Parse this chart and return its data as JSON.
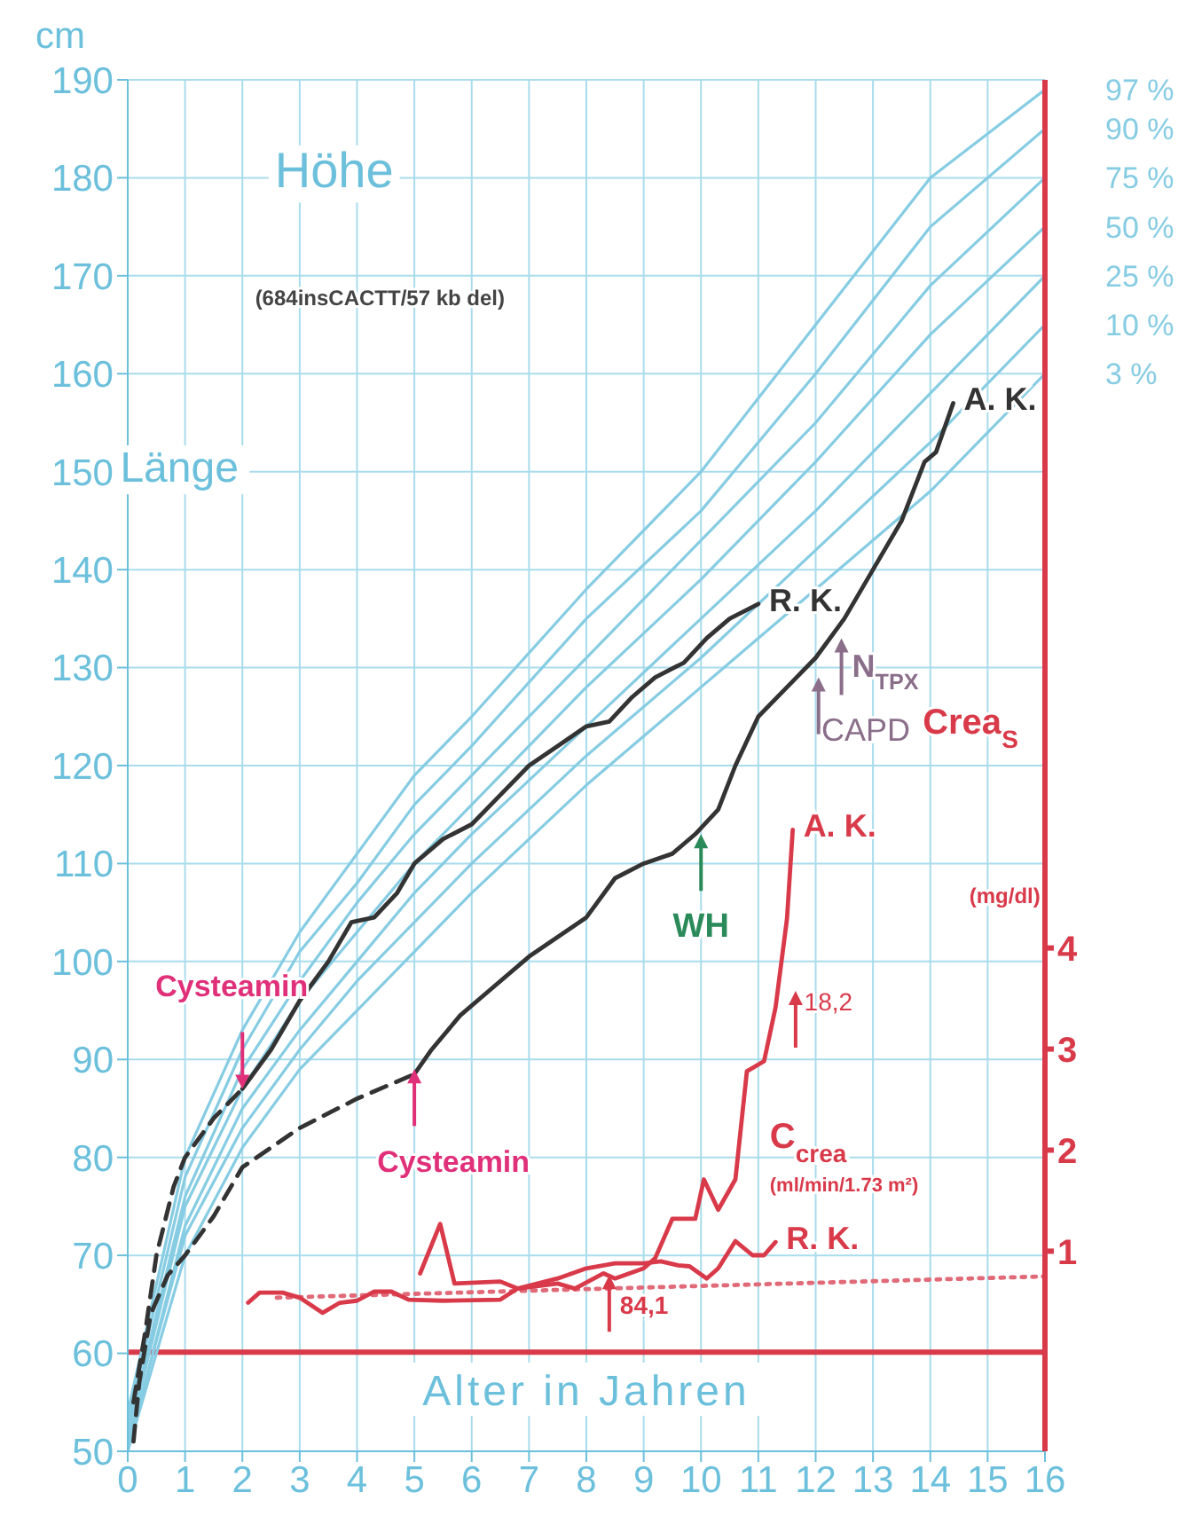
{
  "chart_data": {
    "type": "line",
    "xlabel": "Alter in Jahren",
    "ylabel": "cm",
    "y2label": "Crea$_{S}$",
    "xlim": [
      0,
      16
    ],
    "xticks": [
      0,
      1,
      2,
      3,
      4,
      5,
      6,
      7,
      8,
      9,
      10,
      11,
      12,
      13,
      14,
      15,
      16
    ],
    "ylim": [
      50,
      190
    ],
    "yticks": [
      50,
      60,
      70,
      80,
      90,
      100,
      110,
      120,
      130,
      140,
      150,
      160,
      170,
      180,
      190
    ],
    "y2lim": [
      -0.98,
      12.59
    ],
    "y2ticks": [
      1,
      2,
      3,
      4
    ],
    "grid": true,
    "legend": false,
    "marker": "none",
    "series": [
      {
        "name": "97 %",
        "color": "#86cce3",
        "line_style": "solid",
        "x": [
          0,
          1,
          2,
          3,
          4,
          5,
          6,
          8,
          10,
          12,
          14,
          16
        ],
        "values": [
          54,
          80,
          93,
          103,
          111,
          119,
          125,
          138,
          150,
          165,
          180,
          189
        ]
      },
      {
        "name": "90 %",
        "color": "#86cce3",
        "line_style": "solid",
        "x": [
          0,
          1,
          2,
          3,
          4,
          5,
          6,
          8,
          10,
          12,
          14,
          16
        ],
        "values": [
          53,
          78,
          91,
          101,
          108,
          116,
          122,
          135,
          146,
          160,
          175,
          185
        ]
      },
      {
        "name": "75 %",
        "color": "#86cce3",
        "line_style": "solid",
        "x": [
          0,
          1,
          2,
          3,
          4,
          5,
          6,
          8,
          10,
          12,
          14,
          16
        ],
        "values": [
          52,
          76,
          89,
          98,
          106,
          113,
          119,
          131,
          143,
          155,
          169,
          180
        ]
      },
      {
        "name": "50 %",
        "color": "#86cce3",
        "line_style": "solid",
        "x": [
          0,
          1,
          2,
          3,
          4,
          5,
          6,
          8,
          10,
          12,
          14,
          16
        ],
        "values": [
          51,
          75,
          87,
          96,
          103,
          110,
          116,
          128,
          139,
          151,
          164,
          175
        ]
      },
      {
        "name": "25 %",
        "color": "#86cce3",
        "line_style": "solid",
        "x": [
          0,
          1,
          2,
          3,
          4,
          5,
          6,
          8,
          10,
          12,
          14,
          16
        ],
        "values": [
          50,
          73,
          85,
          93,
          100,
          107,
          113,
          124,
          135,
          146,
          158,
          170
        ]
      },
      {
        "name": "10 %",
        "color": "#86cce3",
        "line_style": "solid",
        "x": [
          0,
          1,
          2,
          3,
          4,
          5,
          6,
          8,
          10,
          12,
          14,
          16
        ],
        "values": [
          50.5,
          72,
          83,
          91,
          98,
          104,
          110,
          121,
          131,
          142,
          153,
          165
        ]
      },
      {
        "name": "3 %",
        "color": "#86cce3",
        "line_style": "solid",
        "x": [
          0,
          1,
          2,
          3,
          4,
          5,
          6,
          8,
          10,
          12,
          14,
          16
        ],
        "values": [
          50,
          70,
          81,
          89,
          95,
          101,
          107,
          118,
          128,
          138,
          148,
          160
        ]
      },
      {
        "color": "#333333",
        "line_style": "dashed",
        "x": [
          0.1,
          0.3,
          0.5,
          0.8,
          1.0,
          1.5,
          2.0
        ],
        "values": [
          55,
          62,
          70,
          77,
          80,
          84,
          87
        ]
      },
      {
        "name": "R. K.",
        "color": "#333333",
        "line_style": "solid",
        "x": [
          2.0,
          2.5,
          3.0,
          3.5,
          3.9,
          4.3,
          4.7,
          5.0,
          5.5,
          6.0,
          6.5,
          7.0,
          7.5,
          8.0,
          8.4,
          8.8,
          9.2,
          9.7,
          10.1,
          10.5,
          11.0
        ],
        "values": [
          87,
          91,
          96,
          100,
          104,
          104.5,
          107,
          110,
          112.5,
          114,
          117,
          120,
          122,
          124,
          124.5,
          127,
          129,
          130.5,
          133,
          135,
          136.5
        ]
      },
      {
        "color": "#333333",
        "line_style": "dashed",
        "x": [
          0.1,
          0.2,
          0.4,
          0.7,
          1.0,
          1.5,
          2.0,
          2.5,
          3.0,
          4.0,
          5.0
        ],
        "values": [
          51,
          57,
          64,
          68,
          70,
          74,
          79,
          81,
          83,
          86,
          88.5
        ]
      },
      {
        "name": "A. K.",
        "color": "#333333",
        "line_style": "solid",
        "x": [
          5.0,
          5.3,
          5.8,
          6.3,
          7.0,
          7.5,
          8.0,
          8.5,
          9.0,
          9.5,
          9.9,
          10.3,
          10.6,
          11.0,
          11.5,
          12.0,
          12.5,
          13.0,
          13.5,
          13.9,
          14.1,
          14.4
        ],
        "values": [
          88.5,
          91,
          94.5,
          97,
          100.5,
          102.5,
          104.5,
          108.5,
          110,
          111,
          113,
          115.5,
          120,
          125,
          128,
          131,
          135,
          140,
          145,
          151,
          152,
          157
        ]
      },
      {
        "color": "#e06a78",
        "line_style": "dotted",
        "axis": "y2",
        "x": [
          2.6,
          16
        ],
        "values": [
          0.54,
          0.75
        ]
      },
      {
        "name": "R. K.",
        "color": "#d93a4a",
        "line_style": "solid",
        "axis": "y2",
        "x": [
          2.1,
          2.3,
          2.7,
          3.0,
          3.4,
          3.7,
          4.0,
          4.3,
          4.6,
          4.9,
          5.5,
          6.5,
          6.8,
          7.5,
          8.0,
          8.5,
          9.0,
          9.3,
          9.6,
          9.8,
          10.1,
          10.3,
          10.6,
          10.9,
          11.1,
          11.3
        ],
        "values": [
          0.49,
          0.59,
          0.59,
          0.54,
          0.39,
          0.49,
          0.51,
          0.6,
          0.6,
          0.52,
          0.51,
          0.52,
          0.63,
          0.73,
          0.83,
          0.88,
          0.88,
          0.9,
          0.86,
          0.85,
          0.73,
          0.83,
          1.1,
          0.96,
          0.96,
          1.09
        ]
      },
      {
        "name": "A. K.",
        "color": "#d93a4a",
        "line_style": "solid",
        "axis": "y2",
        "x": [
          5.1,
          5.45,
          5.7,
          6.5,
          6.8,
          7.5,
          7.8,
          8.3,
          8.5,
          9.0,
          9.2,
          9.5,
          9.9,
          10.05,
          10.3,
          10.6,
          10.8,
          11.1,
          11.3,
          11.5,
          11.6
        ],
        "values": [
          0.78,
          1.27,
          0.68,
          0.7,
          0.63,
          0.68,
          0.63,
          0.78,
          0.73,
          0.83,
          0.93,
          1.32,
          1.32,
          1.71,
          1.41,
          1.71,
          2.78,
          2.88,
          3.41,
          4.29,
          5.17
        ]
      }
    ],
    "ref_lines": [
      {
        "axis": "y2",
        "value": 0,
        "color": "#d93a4a",
        "line_style": "solid"
      }
    ],
    "annotations": [
      "Höhe",
      "Länge",
      "(684insCACTT/57 kb del)",
      {
        "text": "Cysteamin",
        "x": 2,
        "y": 87
      },
      {
        "text": "Cysteamin",
        "x": 5,
        "y": 89
      },
      {
        "text": "WH",
        "x": 10,
        "y": 113
      },
      {
        "text": "N$_{TPX}$",
        "x": 12.45,
        "y": 133
      },
      "CAPD",
      "18,2",
      {
        "text": "84,1",
        "x": 8.4,
        "y": 68
      },
      "C$_{crea}$",
      "(ml/min/1.73 m²)",
      "(mg/dl)"
    ]
  }
}
